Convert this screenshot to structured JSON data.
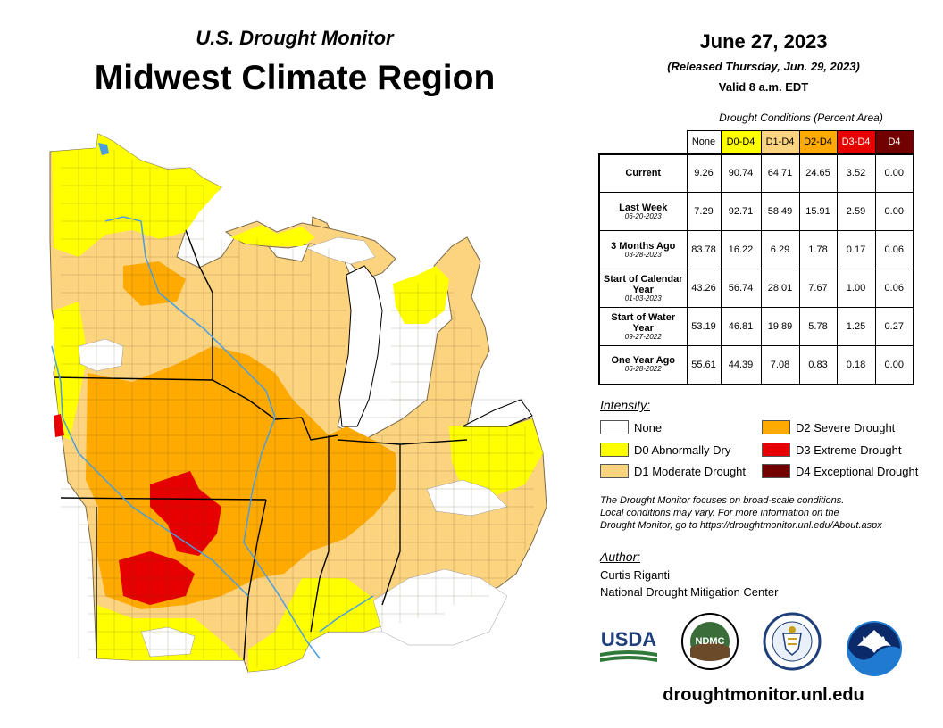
{
  "header": {
    "subtitle": "U.S. Drought Monitor",
    "title": "Midwest Climate Region"
  },
  "dateblock": {
    "date": "June 27, 2023",
    "released": "(Released Thursday, Jun. 29, 2023)",
    "valid": "Valid 8 a.m. EDT"
  },
  "table": {
    "caption": "Drought Conditions (Percent Area)",
    "columns": [
      {
        "label": "None",
        "bg": "#ffffff",
        "fg": "#000000"
      },
      {
        "label": "D0-D4",
        "bg": "#ffff00",
        "fg": "#000000"
      },
      {
        "label": "D1-D4",
        "bg": "#fcd37f",
        "fg": "#000000"
      },
      {
        "label": "D2-D4",
        "bg": "#ffaa00",
        "fg": "#000000"
      },
      {
        "label": "D3-D4",
        "bg": "#e60000",
        "fg": "#ffffff"
      },
      {
        "label": "D4",
        "bg": "#730000",
        "fg": "#ffffff"
      }
    ],
    "rows": [
      {
        "label": "Current",
        "date": "",
        "values": [
          "9.26",
          "90.74",
          "64.71",
          "24.65",
          "3.52",
          "0.00"
        ]
      },
      {
        "label": "Last Week",
        "date": "06-20-2023",
        "values": [
          "7.29",
          "92.71",
          "58.49",
          "15.91",
          "2.59",
          "0.00"
        ]
      },
      {
        "label": "3 Months Ago",
        "date": "03-28-2023",
        "values": [
          "83.78",
          "16.22",
          "6.29",
          "1.78",
          "0.17",
          "0.06"
        ]
      },
      {
        "label": "Start of Calendar Year",
        "date": "01-03-2023",
        "values": [
          "43.26",
          "56.74",
          "28.01",
          "7.67",
          "1.00",
          "0.06"
        ]
      },
      {
        "label": "Start of Water Year",
        "date": "09-27-2022",
        "values": [
          "53.19",
          "46.81",
          "19.89",
          "5.78",
          "1.25",
          "0.27"
        ]
      },
      {
        "label": "One Year Ago",
        "date": "06-28-2022",
        "values": [
          "55.61",
          "44.39",
          "7.08",
          "0.83",
          "0.18",
          "0.00"
        ]
      }
    ]
  },
  "legend": {
    "title": "Intensity:",
    "items": [
      {
        "label": "None",
        "color": "#ffffff"
      },
      {
        "label": "D0 Abnormally Dry",
        "color": "#ffff00"
      },
      {
        "label": "D1 Moderate Drought",
        "color": "#fcd37f"
      },
      {
        "label": "D2 Severe Drought",
        "color": "#ffaa00"
      },
      {
        "label": "D3 Extreme Drought",
        "color": "#e60000"
      },
      {
        "label": "D4 Exceptional Drought",
        "color": "#730000"
      }
    ]
  },
  "note": {
    "line1": "The Drought Monitor focuses on broad-scale conditions.",
    "line2": "Local conditions may vary. For more information on the",
    "line3": "Drought Monitor, go to https://droughtmonitor.unl.edu/About.aspx"
  },
  "author": {
    "title": "Author:",
    "name": "Curtis Riganti",
    "org": "National Drought Mitigation Center"
  },
  "logos": {
    "usda": "USDA",
    "ndmc": "NDMC",
    "noaa": "NOAA"
  },
  "website": "droughtmonitor.unl.edu"
}
